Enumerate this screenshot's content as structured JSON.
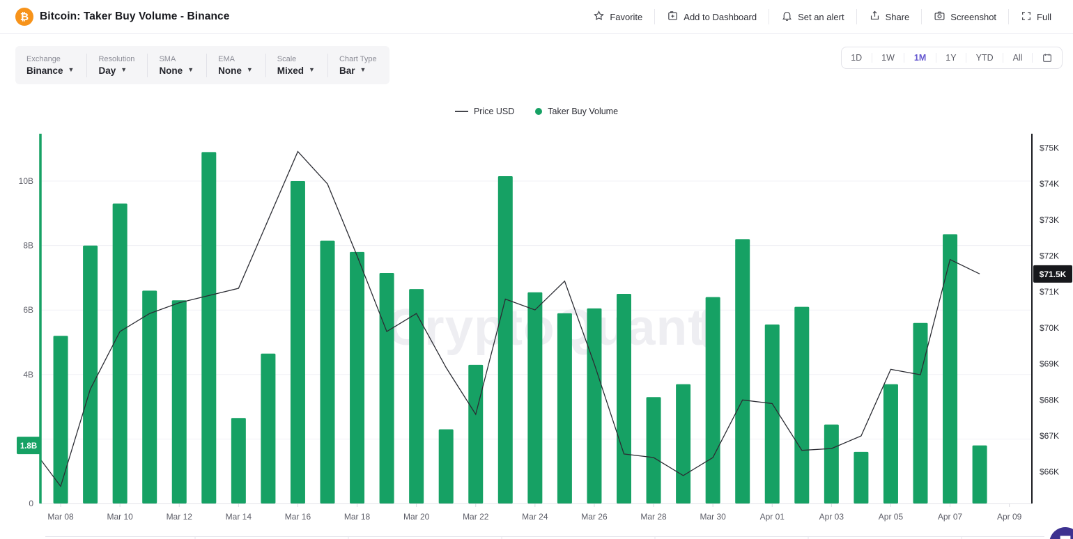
{
  "header": {
    "title": "Bitcoin: Taker Buy Volume - Binance",
    "coin_symbol": "₿",
    "actions": [
      {
        "id": "favorite",
        "label": "Favorite"
      },
      {
        "id": "add-to-dashboard",
        "label": "Add to Dashboard"
      },
      {
        "id": "set-alert",
        "label": "Set an alert"
      },
      {
        "id": "share",
        "label": "Share"
      },
      {
        "id": "screenshot",
        "label": "Screenshot"
      },
      {
        "id": "full",
        "label": "Full"
      }
    ]
  },
  "toolbar": {
    "controls": [
      {
        "label": "Exchange",
        "value": "Binance"
      },
      {
        "label": "Resolution",
        "value": "Day"
      },
      {
        "label": "SMA",
        "value": "None"
      },
      {
        "label": "EMA",
        "value": "None"
      },
      {
        "label": "Scale",
        "value": "Mixed"
      },
      {
        "label": "Chart Type",
        "value": "Bar"
      }
    ]
  },
  "range_selector": {
    "options": [
      "1D",
      "1W",
      "1M",
      "1Y",
      "YTD",
      "All"
    ],
    "active": "1M"
  },
  "legend": [
    {
      "label": "Price USD",
      "type": "line"
    },
    {
      "label": "Taker Buy Volume",
      "type": "dot"
    }
  ],
  "watermark": "CryptoQuant",
  "colors": {
    "bar_green": "#16a164",
    "price_line": "#2b2c33",
    "grid": "#f1f1f5",
    "axis_left_text": "#5f606a",
    "axis_right_text": "#2f3038",
    "right_axis_line": "#1a1b20",
    "tick_text": "#5b5c66",
    "badge_left_bg": "#16a164",
    "badge_right_bg": "#17181c",
    "watermark": "#eeeef2",
    "accent_purple": "#6457cf",
    "bitcoin_orange": "#f7931a",
    "bottom_strip": "#e6e6ec"
  },
  "chart_data": {
    "type": "bar",
    "combo": "bar+line dual axis",
    "title": "Bitcoin: Taker Buy Volume - Binance",
    "categories": [
      "Mar 07",
      "Mar 08",
      "Mar 09",
      "Mar 10",
      "Mar 11",
      "Mar 12",
      "Mar 13",
      "Mar 14",
      "Mar 15",
      "Mar 16",
      "Mar 17",
      "Mar 18",
      "Mar 19",
      "Mar 20",
      "Mar 21",
      "Mar 22",
      "Mar 23",
      "Mar 24",
      "Mar 25",
      "Mar 26",
      "Mar 27",
      "Mar 28",
      "Mar 29",
      "Mar 30",
      "Mar 31",
      "Apr 01",
      "Apr 02",
      "Apr 03",
      "Apr 04",
      "Apr 05",
      "Apr 06",
      "Apr 07",
      "Apr 08",
      "Apr 09"
    ],
    "series": [
      {
        "name": "Taker Buy Volume",
        "type": "bar",
        "axis": "left",
        "unit": "B USD",
        "values": [
          null,
          5.2,
          8.0,
          9.3,
          6.6,
          6.3,
          10.9,
          2.65,
          4.65,
          10.0,
          8.15,
          7.8,
          7.15,
          6.65,
          2.3,
          4.3,
          10.15,
          6.55,
          5.9,
          6.05,
          6.5,
          3.3,
          3.7,
          6.4,
          8.2,
          5.55,
          6.1,
          2.45,
          1.6,
          3.7,
          5.6,
          8.35,
          1.8,
          null
        ]
      },
      {
        "name": "Price USD",
        "type": "line",
        "axis": "right",
        "unit": "K USD",
        "values": [
          66.7,
          65.6,
          68.3,
          69.9,
          70.4,
          70.7,
          70.9,
          71.1,
          73.0,
          74.9,
          74.0,
          72.0,
          69.9,
          70.4,
          68.9,
          67.6,
          70.8,
          70.5,
          71.3,
          69.0,
          66.5,
          66.4,
          65.9,
          66.4,
          68.0,
          67.9,
          66.6,
          66.65,
          67.0,
          68.85,
          68.7,
          71.9,
          71.5,
          null
        ]
      }
    ],
    "left_axis": {
      "ticks": [
        {
          "v": 10,
          "label": "10B"
        },
        {
          "v": 8,
          "label": "8B"
        },
        {
          "v": 6,
          "label": "6B"
        },
        {
          "v": 4,
          "label": "4B"
        },
        {
          "v": 0,
          "label": "0"
        }
      ],
      "range": [
        0,
        12
      ],
      "current_badge": {
        "label": "1.8B",
        "value": 1.8
      }
    },
    "right_axis": {
      "ticks": [
        {
          "v": 75,
          "label": "$75K"
        },
        {
          "v": 74,
          "label": "$74K"
        },
        {
          "v": 73,
          "label": "$73K"
        },
        {
          "v": 72,
          "label": "$72K"
        },
        {
          "v": 71,
          "label": "$71K"
        },
        {
          "v": 70,
          "label": "$70K"
        },
        {
          "v": 69,
          "label": "$69K"
        },
        {
          "v": 68,
          "label": "$68K"
        },
        {
          "v": 67,
          "label": "$67K"
        },
        {
          "v": 66,
          "label": "$66K"
        }
      ],
      "range": [
        65.1,
        75.5
      ],
      "current_badge": {
        "label": "$71.5K",
        "value": 71.5
      }
    },
    "x_ticks": [
      "Mar 08",
      "Mar 10",
      "Mar 12",
      "Mar 14",
      "Mar 16",
      "Mar 18",
      "Mar 20",
      "Mar 22",
      "Mar 24",
      "Mar 26",
      "Mar 28",
      "Mar 30",
      "Apr 01",
      "Apr 03",
      "Apr 05",
      "Apr 07",
      "Apr 09"
    ],
    "grid": "horizontal, every 2B",
    "legend_position": "top-center"
  }
}
